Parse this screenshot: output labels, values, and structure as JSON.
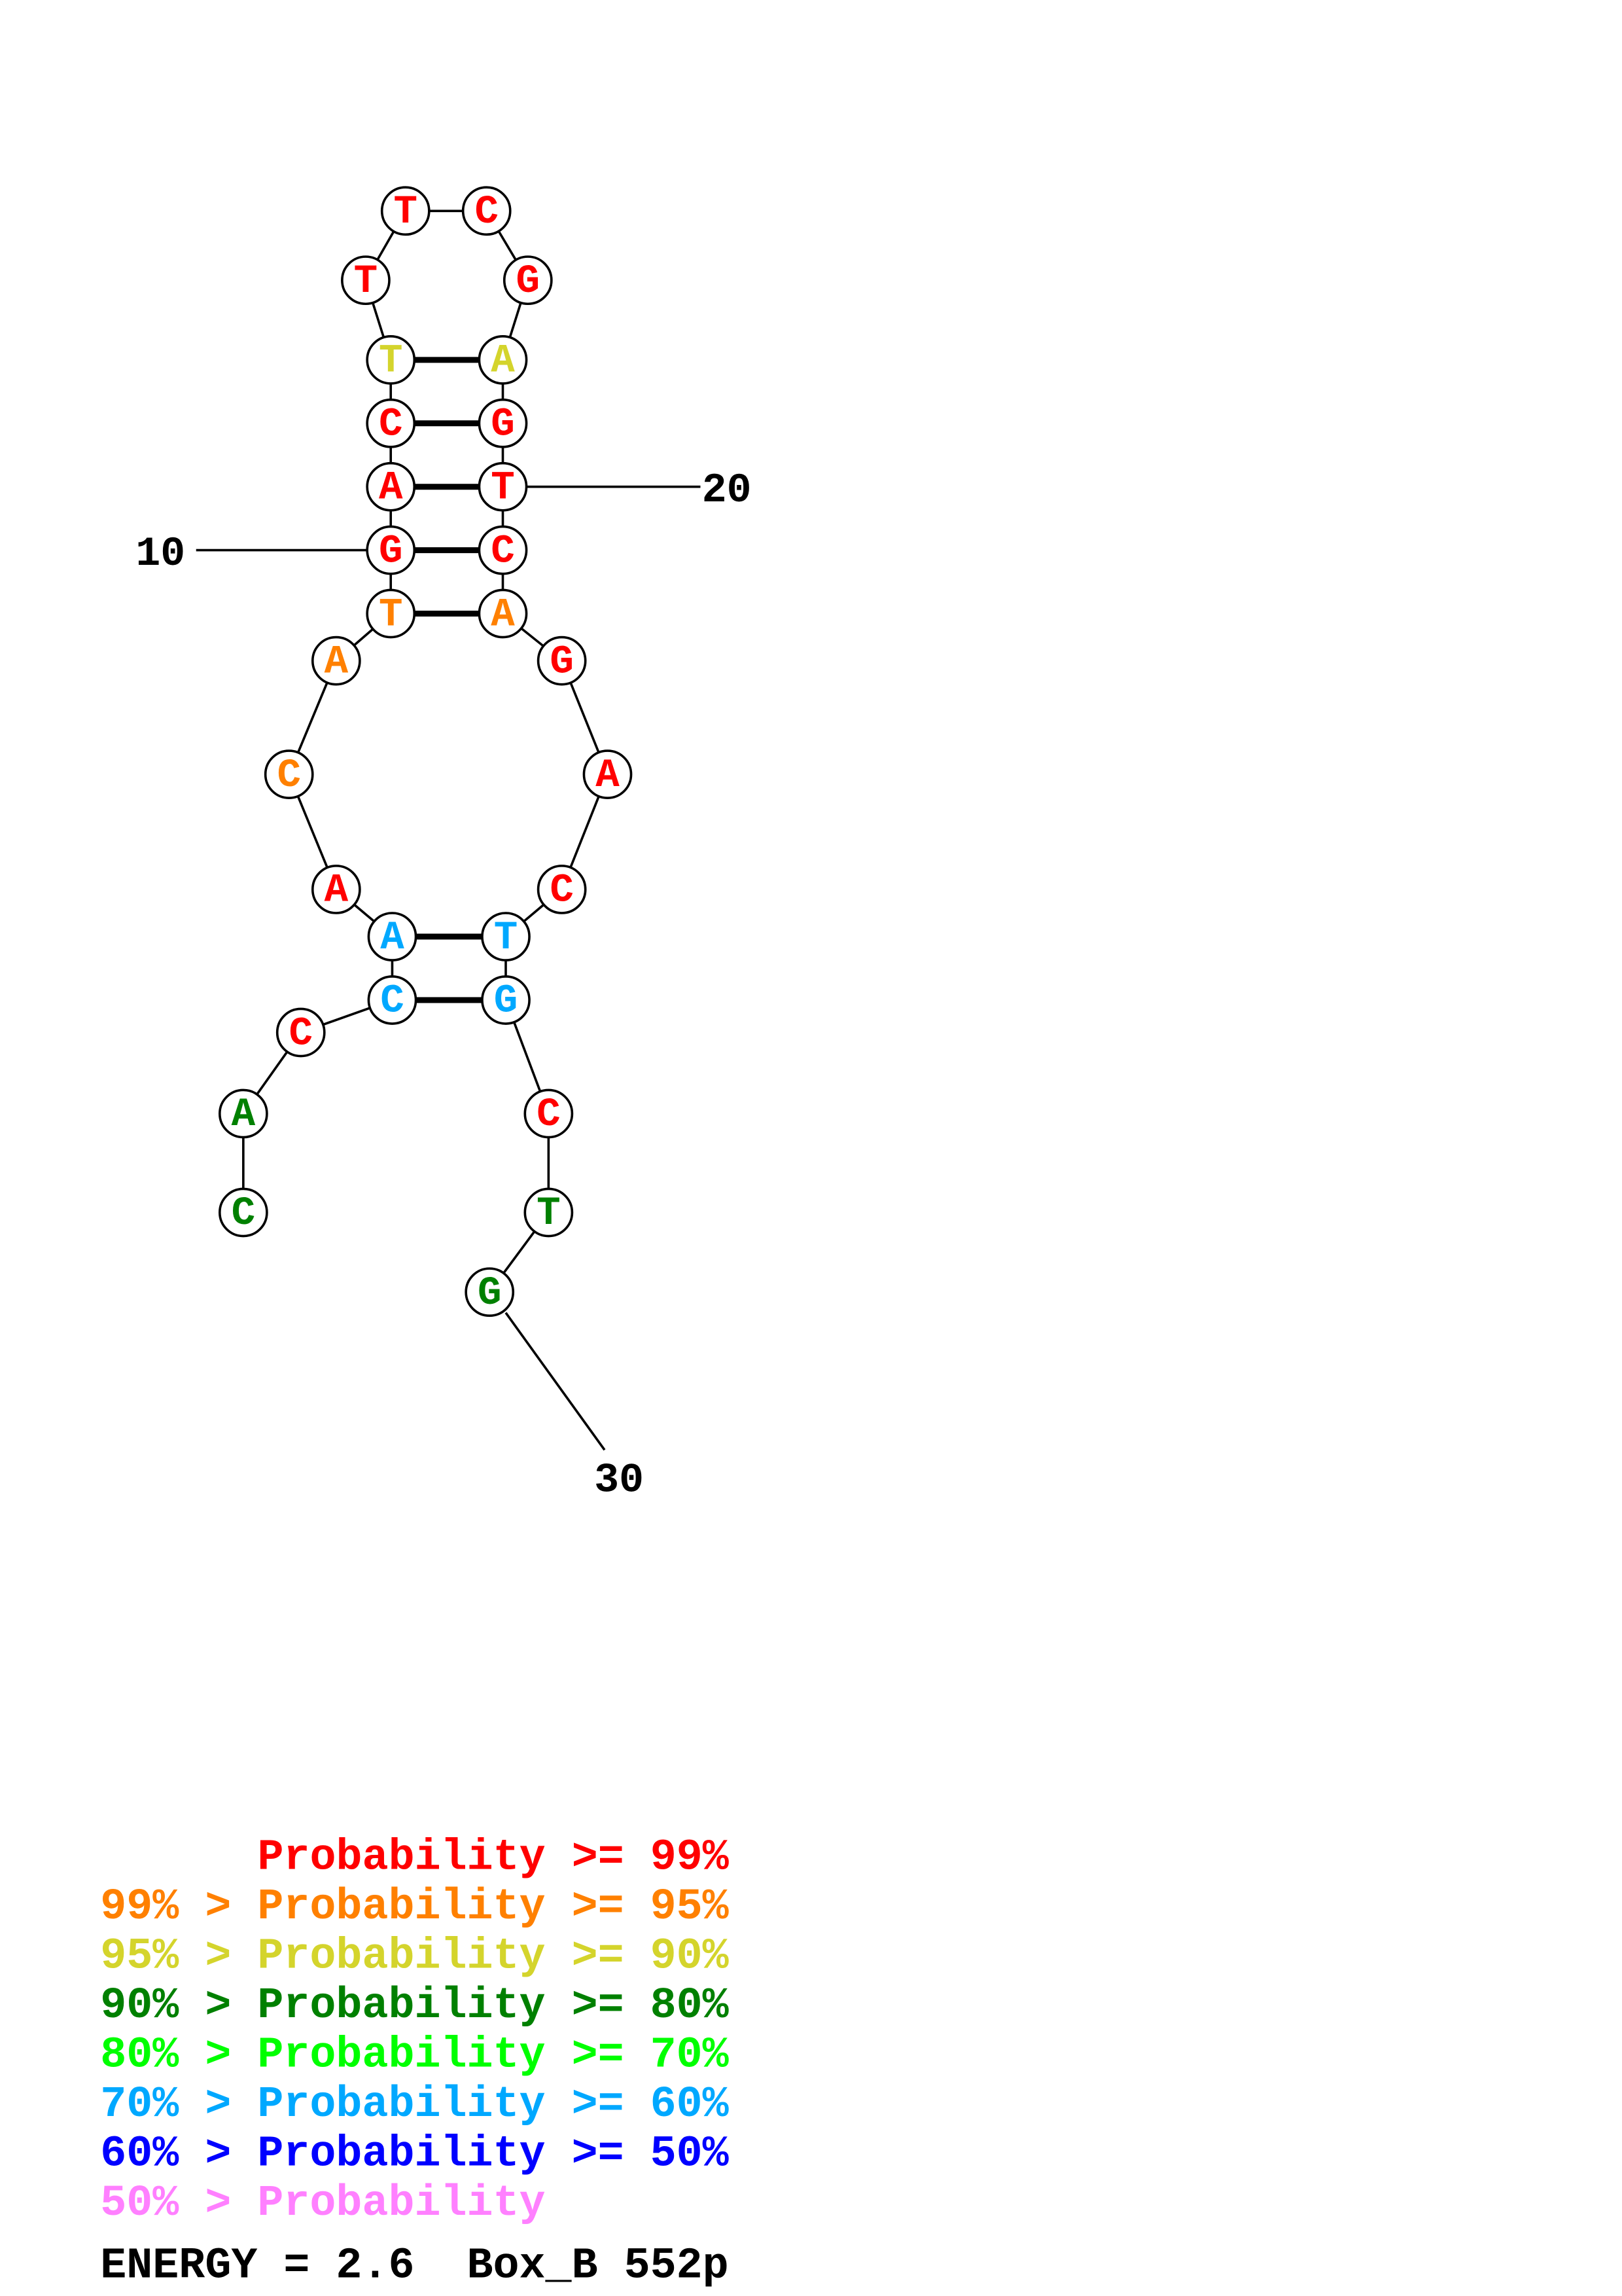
{
  "sequence": [
    "C",
    "A",
    "C",
    "C",
    "A",
    "A",
    "C",
    "A",
    "T",
    "G",
    "A",
    "C",
    "T",
    "T",
    "T",
    "C",
    "G",
    "A",
    "G",
    "T",
    "C",
    "A",
    "G",
    "A",
    "C",
    "T",
    "G",
    "C",
    "T",
    "G"
  ],
  "probability_class": [
    "p80",
    "p80",
    "p99",
    "p60",
    "p60",
    "p99",
    "p95",
    "p95",
    "p95",
    "p99",
    "p99",
    "p99",
    "p90",
    "p99",
    "p99",
    "p99",
    "p99",
    "p90",
    "p99",
    "p99",
    "p99",
    "p95",
    "p99",
    "p99",
    "p99",
    "p60",
    "p60",
    "p99",
    "p80",
    "p80"
  ],
  "pairs": [
    [
      4,
      27
    ],
    [
      5,
      26
    ],
    [
      9,
      22
    ],
    [
      10,
      21
    ],
    [
      11,
      20
    ],
    [
      12,
      19
    ],
    [
      13,
      18
    ]
  ],
  "position_labels": [
    {
      "index": 10,
      "text": "10"
    },
    {
      "index": 20,
      "text": "20"
    },
    {
      "index": 30,
      "text": "30"
    }
  ],
  "colors": {
    "p99": "#ff0000",
    "p95": "#ff8000",
    "p90": "#d4d42c",
    "p80": "#008000",
    "p70": "#00ff00",
    "p60": "#00a8ff",
    "p50": "#0000ff",
    "plow": "#ff80ff"
  },
  "legend": [
    {
      "text": "Probability >= 99%",
      "class": "p99"
    },
    {
      "text": "99% > Probability >= 95%",
      "class": "p95"
    },
    {
      "text": "95% > Probability >= 90%",
      "class": "p90"
    },
    {
      "text": "90% > Probability >= 80%",
      "class": "p80"
    },
    {
      "text": "80% > Probability >= 70%",
      "class": "p70"
    },
    {
      "text": "70% > Probability >= 60%",
      "class": "p60"
    },
    {
      "text": "60% > Probability >= 50%",
      "class": "p50"
    },
    {
      "text": "50% > Probability",
      "class": "plow"
    }
  ],
  "energy_line": "ENERGY = 2.6  Box_B 552p"
}
